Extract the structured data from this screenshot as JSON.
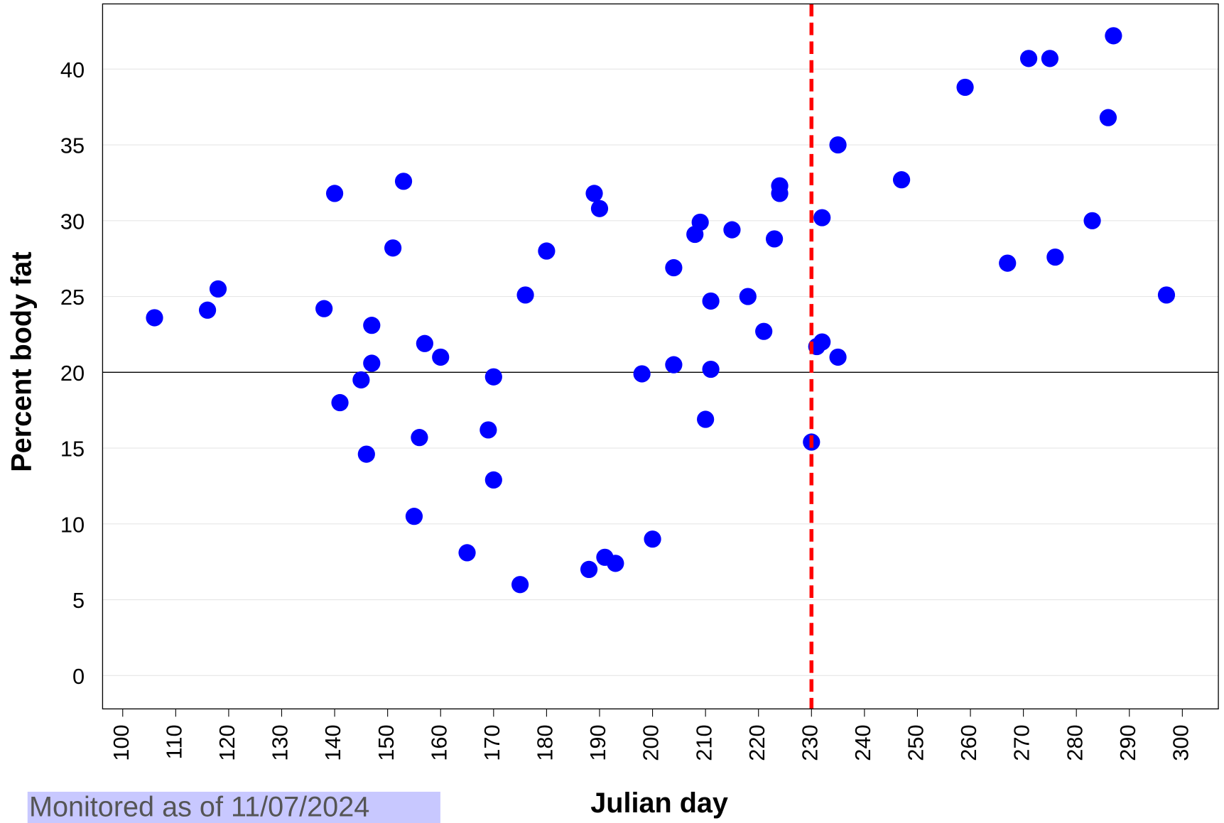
{
  "chart_data": {
    "type": "scatter",
    "xlabel": "Julian day",
    "ylabel": "Percent body fat",
    "annotation": "Monitored as of 11/07/2024",
    "color": "#0000ff",
    "hline": {
      "value": 20,
      "color": "#000000"
    },
    "vline": {
      "value": 230,
      "color": "#ff0000"
    },
    "grid": true,
    "xlim": [
      96.2,
      306.8
    ],
    "ylim": [
      -2.2,
      44.3
    ],
    "xticks": [
      100,
      110,
      120,
      130,
      140,
      150,
      160,
      170,
      180,
      190,
      200,
      210,
      220,
      230,
      240,
      250,
      260,
      270,
      280,
      290,
      300
    ],
    "yticks": [
      0,
      5,
      10,
      15,
      20,
      25,
      30,
      35,
      40
    ],
    "x": [
      106,
      116,
      118,
      138,
      140,
      141,
      145,
      146,
      147,
      147,
      151,
      153,
      155,
      156,
      157,
      160,
      165,
      169,
      170,
      170,
      175,
      176,
      180,
      188,
      189,
      190,
      191,
      193,
      198,
      200,
      204,
      204,
      208,
      209,
      210,
      211,
      211,
      215,
      218,
      221,
      223,
      224,
      224,
      230,
      231,
      232,
      232,
      235,
      235,
      247,
      259,
      267,
      271,
      275,
      276,
      283,
      286,
      287,
      297
    ],
    "values": [
      23.6,
      24.1,
      25.5,
      24.2,
      31.8,
      18.0,
      19.5,
      14.6,
      23.1,
      20.6,
      28.2,
      32.6,
      10.5,
      15.7,
      21.9,
      21.0,
      8.1,
      16.2,
      19.7,
      12.9,
      6.0,
      25.1,
      28.0,
      7.0,
      31.8,
      30.8,
      7.8,
      7.4,
      19.9,
      9.0,
      26.9,
      20.5,
      29.1,
      29.9,
      16.9,
      24.7,
      20.2,
      29.4,
      25.0,
      22.7,
      28.8,
      32.3,
      31.8,
      15.4,
      21.7,
      30.2,
      22.0,
      35.0,
      21.0,
      32.7,
      38.8,
      27.2,
      40.7,
      40.7,
      27.6,
      30.0,
      36.8,
      42.2,
      25.1
    ]
  }
}
